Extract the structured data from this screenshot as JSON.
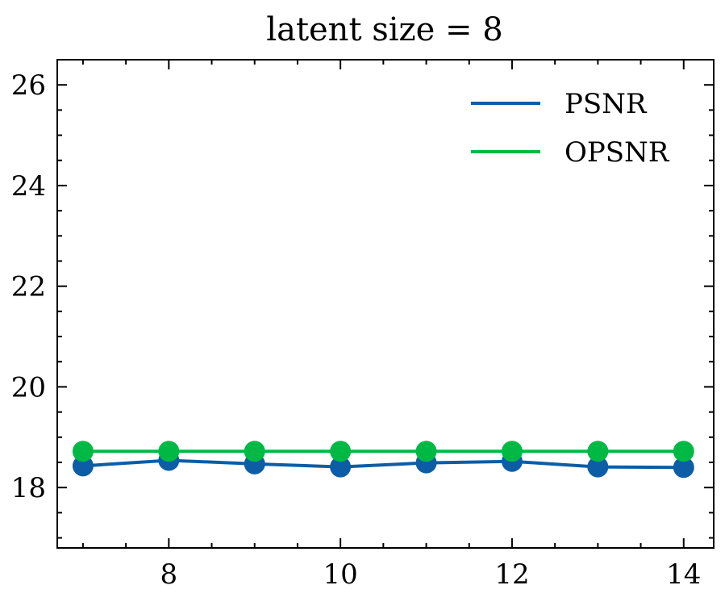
{
  "chart_data": {
    "type": "line",
    "title": "latent size = 8",
    "xlabel": "",
    "ylabel": "",
    "xlim": [
      6.7,
      14.35
    ],
    "ylim": [
      16.8,
      26.5
    ],
    "x_major_ticks": [
      8,
      10,
      12,
      14
    ],
    "x_minor_ticks": [
      7,
      7.5,
      8.5,
      9,
      9.5,
      10.5,
      11,
      11.5,
      12.5,
      13,
      13.5
    ],
    "y_major_ticks": [
      18,
      20,
      22,
      24,
      26
    ],
    "y_minor_ticks": [
      17,
      17.5,
      18.5,
      19,
      19.5,
      20.5,
      21,
      21.5,
      22.5,
      23,
      23.5,
      24.5,
      25,
      25.5,
      26.5
    ],
    "x_tick_labels": [
      "8",
      "10",
      "12",
      "14"
    ],
    "y_tick_labels": [
      "18",
      "20",
      "22",
      "24",
      "26"
    ],
    "x": [
      7,
      8,
      9,
      10,
      11,
      12,
      13,
      14
    ],
    "series": [
      {
        "name": "PSNR",
        "color": "#0C5DA5",
        "values": [
          18.43,
          18.54,
          18.47,
          18.41,
          18.49,
          18.52,
          18.41,
          18.4
        ]
      },
      {
        "name": "OPSNR",
        "color": "#00B945",
        "values": [
          18.72,
          18.72,
          18.72,
          18.72,
          18.72,
          18.72,
          18.72,
          18.72
        ]
      }
    ],
    "legend": "top-right",
    "grid": false,
    "markers": "circle"
  }
}
